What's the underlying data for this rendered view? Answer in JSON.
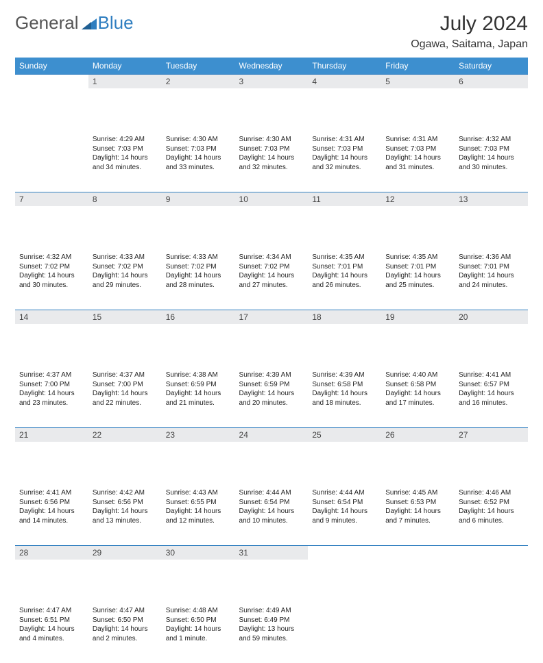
{
  "logo": {
    "text1": "General",
    "text2": "Blue"
  },
  "title": "July 2024",
  "location": "Ogawa, Saitama, Japan",
  "colors": {
    "header_bg": "#3d8fcf",
    "header_text": "#ffffff",
    "daynum_bg": "#e9eaec",
    "border": "#2f7ec0",
    "logo_gray": "#555555",
    "logo_blue": "#2f7ec0"
  },
  "weekdays": [
    "Sunday",
    "Monday",
    "Tuesday",
    "Wednesday",
    "Thursday",
    "Friday",
    "Saturday"
  ],
  "start_offset": 1,
  "days": [
    {
      "n": 1,
      "sr": "4:29 AM",
      "ss": "7:03 PM",
      "dl": "14 hours and 34 minutes."
    },
    {
      "n": 2,
      "sr": "4:30 AM",
      "ss": "7:03 PM",
      "dl": "14 hours and 33 minutes."
    },
    {
      "n": 3,
      "sr": "4:30 AM",
      "ss": "7:03 PM",
      "dl": "14 hours and 32 minutes."
    },
    {
      "n": 4,
      "sr": "4:31 AM",
      "ss": "7:03 PM",
      "dl": "14 hours and 32 minutes."
    },
    {
      "n": 5,
      "sr": "4:31 AM",
      "ss": "7:03 PM",
      "dl": "14 hours and 31 minutes."
    },
    {
      "n": 6,
      "sr": "4:32 AM",
      "ss": "7:03 PM",
      "dl": "14 hours and 30 minutes."
    },
    {
      "n": 7,
      "sr": "4:32 AM",
      "ss": "7:02 PM",
      "dl": "14 hours and 30 minutes."
    },
    {
      "n": 8,
      "sr": "4:33 AM",
      "ss": "7:02 PM",
      "dl": "14 hours and 29 minutes."
    },
    {
      "n": 9,
      "sr": "4:33 AM",
      "ss": "7:02 PM",
      "dl": "14 hours and 28 minutes."
    },
    {
      "n": 10,
      "sr": "4:34 AM",
      "ss": "7:02 PM",
      "dl": "14 hours and 27 minutes."
    },
    {
      "n": 11,
      "sr": "4:35 AM",
      "ss": "7:01 PM",
      "dl": "14 hours and 26 minutes."
    },
    {
      "n": 12,
      "sr": "4:35 AM",
      "ss": "7:01 PM",
      "dl": "14 hours and 25 minutes."
    },
    {
      "n": 13,
      "sr": "4:36 AM",
      "ss": "7:01 PM",
      "dl": "14 hours and 24 minutes."
    },
    {
      "n": 14,
      "sr": "4:37 AM",
      "ss": "7:00 PM",
      "dl": "14 hours and 23 minutes."
    },
    {
      "n": 15,
      "sr": "4:37 AM",
      "ss": "7:00 PM",
      "dl": "14 hours and 22 minutes."
    },
    {
      "n": 16,
      "sr": "4:38 AM",
      "ss": "6:59 PM",
      "dl": "14 hours and 21 minutes."
    },
    {
      "n": 17,
      "sr": "4:39 AM",
      "ss": "6:59 PM",
      "dl": "14 hours and 20 minutes."
    },
    {
      "n": 18,
      "sr": "4:39 AM",
      "ss": "6:58 PM",
      "dl": "14 hours and 18 minutes."
    },
    {
      "n": 19,
      "sr": "4:40 AM",
      "ss": "6:58 PM",
      "dl": "14 hours and 17 minutes."
    },
    {
      "n": 20,
      "sr": "4:41 AM",
      "ss": "6:57 PM",
      "dl": "14 hours and 16 minutes."
    },
    {
      "n": 21,
      "sr": "4:41 AM",
      "ss": "6:56 PM",
      "dl": "14 hours and 14 minutes."
    },
    {
      "n": 22,
      "sr": "4:42 AM",
      "ss": "6:56 PM",
      "dl": "14 hours and 13 minutes."
    },
    {
      "n": 23,
      "sr": "4:43 AM",
      "ss": "6:55 PM",
      "dl": "14 hours and 12 minutes."
    },
    {
      "n": 24,
      "sr": "4:44 AM",
      "ss": "6:54 PM",
      "dl": "14 hours and 10 minutes."
    },
    {
      "n": 25,
      "sr": "4:44 AM",
      "ss": "6:54 PM",
      "dl": "14 hours and 9 minutes."
    },
    {
      "n": 26,
      "sr": "4:45 AM",
      "ss": "6:53 PM",
      "dl": "14 hours and 7 minutes."
    },
    {
      "n": 27,
      "sr": "4:46 AM",
      "ss": "6:52 PM",
      "dl": "14 hours and 6 minutes."
    },
    {
      "n": 28,
      "sr": "4:47 AM",
      "ss": "6:51 PM",
      "dl": "14 hours and 4 minutes."
    },
    {
      "n": 29,
      "sr": "4:47 AM",
      "ss": "6:50 PM",
      "dl": "14 hours and 2 minutes."
    },
    {
      "n": 30,
      "sr": "4:48 AM",
      "ss": "6:50 PM",
      "dl": "14 hours and 1 minute."
    },
    {
      "n": 31,
      "sr": "4:49 AM",
      "ss": "6:49 PM",
      "dl": "13 hours and 59 minutes."
    }
  ],
  "labels": {
    "sunrise": "Sunrise:",
    "sunset": "Sunset:",
    "daylight": "Daylight:"
  }
}
